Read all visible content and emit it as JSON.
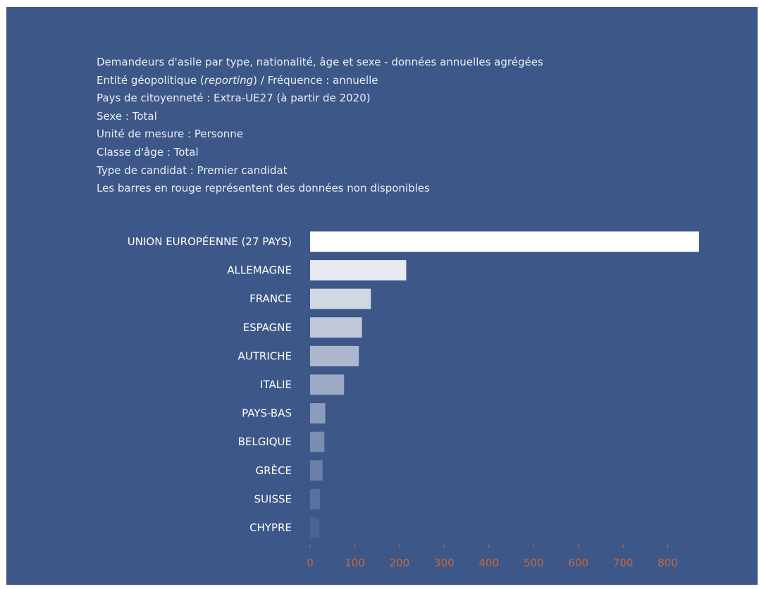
{
  "header_lines": [
    [
      "Demandeurs d'asile par type, nationalité, âge et sexe - données annuelles agrégées"
    ],
    [
      "Entité géopolitique (",
      "reporting",
      ") / Fréquence : annuelle"
    ],
    [
      "Pays de citoyenneté : Extra-UE27 (à partir de 2020)"
    ],
    [
      "Sexe : Total"
    ],
    [
      "Unité de mesure : Personne"
    ],
    [
      "Classe d'âge : Total"
    ],
    [
      "Type de candidat : Premier candidat"
    ],
    [
      "Les barres en rouge représentent des données non disponibles"
    ]
  ],
  "colors": {
    "panel_background": "#3d5788",
    "text": "#ffffff",
    "axis_tick": "#c8683e",
    "bar_max": "#ffffff",
    "bar_min": "#4c6495"
  },
  "chart_data": {
    "type": "bar",
    "orientation": "horizontal",
    "title": "",
    "xlabel": "",
    "ylabel": "",
    "categories": [
      "UNION EUROPÉENNE (27 PAYS)",
      "ALLEMAGNE",
      "FRANCE",
      "ESPAGNE",
      "AUTRICHE",
      "ITALIE",
      "PAYS-BAS",
      "BELGIQUE",
      "GRÈCE",
      "SUISSE",
      "CHYPRE"
    ],
    "values": [
      870,
      215,
      136,
      116,
      109,
      76,
      34,
      32,
      28,
      22,
      20
    ],
    "xlim": [
      0,
      870
    ],
    "xticks": [
      0,
      100,
      200,
      300,
      400,
      500,
      600,
      700,
      800
    ],
    "grid": false,
    "legend": "none"
  }
}
